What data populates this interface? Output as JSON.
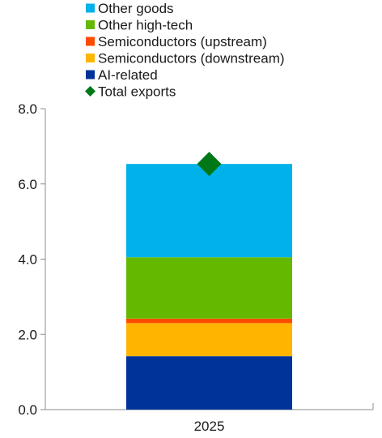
{
  "chart_data": {
    "type": "bar",
    "stacked": true,
    "categories": [
      "2025"
    ],
    "series": [
      {
        "name": "AI-related",
        "values": [
          1.42
        ],
        "color": "#003399"
      },
      {
        "name": "Semiconductors (downstream)",
        "values": [
          0.88
        ],
        "color": "#ffb400"
      },
      {
        "name": "Semiconductors (upstream)",
        "values": [
          0.12
        ],
        "color": "#ff4b00"
      },
      {
        "name": "Other high-tech",
        "values": [
          1.63
        ],
        "color": "#65b800"
      },
      {
        "name": "Other goods",
        "values": [
          2.48
        ],
        "color": "#00b1ea"
      }
    ],
    "markers": [
      {
        "name": "Total exports",
        "values": [
          6.53
        ],
        "color": "#007816",
        "shape": "diamond"
      }
    ],
    "legend_order": [
      "Other goods",
      "Other high-tech",
      "Semiconductors (upstream)",
      "Semiconductors (downstream)",
      "AI-related",
      "Total exports"
    ],
    "ylim": [
      0,
      8
    ],
    "yticks": [
      "0.0",
      "2.0",
      "4.0",
      "6.0",
      "8.0"
    ],
    "ytick_values": [
      0,
      2,
      4,
      6,
      8
    ],
    "legend_position": "top-left",
    "grid": false
  }
}
